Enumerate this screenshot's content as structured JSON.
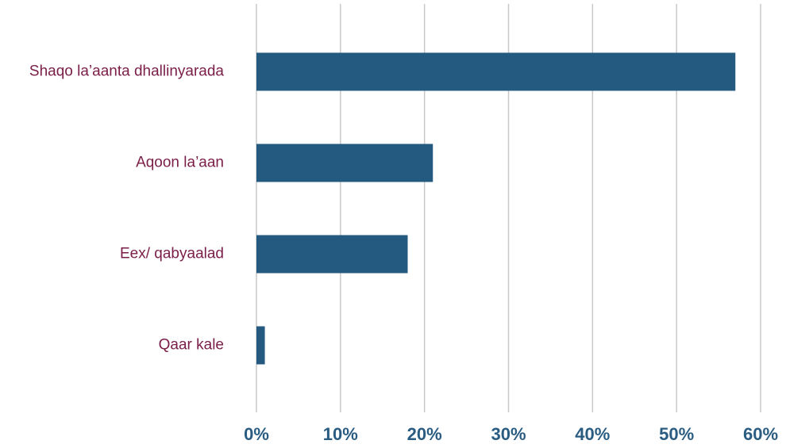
{
  "chart_data": {
    "type": "bar",
    "orientation": "horizontal",
    "categories": [
      "Shaqo la’aanta dhallinyarada",
      "Aqoon la’aan",
      "Eex/ qabyaalad",
      "Qaar kale"
    ],
    "values": [
      57,
      21,
      18,
      1
    ],
    "color": "#245a80",
    "xlim": [
      0,
      60
    ],
    "xticks": [
      {
        "value": 0,
        "label": "0%"
      },
      {
        "value": 10,
        "label": "10%"
      },
      {
        "value": 20,
        "label": "20%"
      },
      {
        "value": 30,
        "label": "30%"
      },
      {
        "value": 40,
        "label": "40%"
      },
      {
        "value": 50,
        "label": "50%"
      },
      {
        "value": 60,
        "label": "60%"
      }
    ],
    "grid": true
  }
}
